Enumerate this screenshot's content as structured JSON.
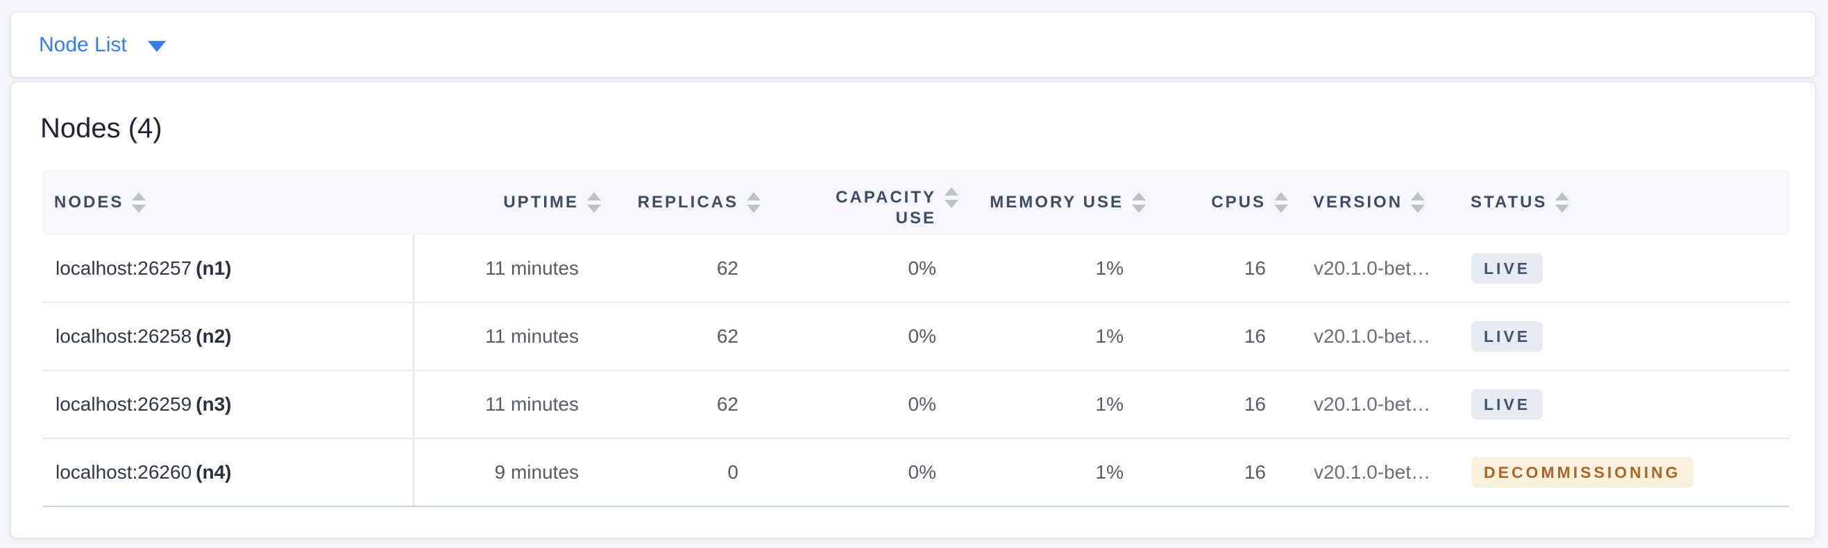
{
  "dropdown": {
    "label": "Node List",
    "caret_icon": "caret-down-icon"
  },
  "summary": {
    "title": "Nodes (4)"
  },
  "colors": {
    "link_blue": "#3b7de8",
    "page_background": "#f3f5fa",
    "header_background": "#f6f7fa",
    "header_text": "#3e4c63",
    "live_badge_bg": "#e7ebf3",
    "live_badge_text": "#44536d",
    "decommissioning_badge_bg": "#faf1dd",
    "decommissioning_badge_text": "#a9662c"
  },
  "table": {
    "columns": [
      {
        "id": "node",
        "label": "NODES",
        "align": "left",
        "sort_icon": "sort-arrows-icon"
      },
      {
        "id": "uptime",
        "label": "UPTIME",
        "align": "right",
        "sort_icon": "sort-arrows-icon"
      },
      {
        "id": "replicas",
        "label": "REPLICAS",
        "align": "right",
        "sort_icon": "sort-arrows-icon"
      },
      {
        "id": "capacity_use",
        "label": "CAPACITY USE",
        "align": "right",
        "wrap": true,
        "sort_icon": "sort-arrows-icon"
      },
      {
        "id": "memory_use",
        "label": "MEMORY USE",
        "align": "right",
        "sort_icon": "sort-arrows-icon"
      },
      {
        "id": "cpus",
        "label": "CPUS",
        "align": "right",
        "sort_icon": "sort-arrows-icon"
      },
      {
        "id": "version",
        "label": "VERSION",
        "align": "left",
        "sort_icon": "sort-arrows-icon"
      },
      {
        "id": "status",
        "label": "STATUS",
        "align": "left",
        "sort_icon": "sort-arrows-icon"
      }
    ],
    "rows": [
      {
        "node": "localhost:26257",
        "node_id": "(n1)",
        "uptime": "11 minutes",
        "replicas": "62",
        "capacity_use": "0%",
        "memory_use": "1%",
        "cpus": "16",
        "version": "v20.1.0-bet…",
        "status": "LIVE",
        "status_type": "live"
      },
      {
        "node": "localhost:26258",
        "node_id": "(n2)",
        "uptime": "11 minutes",
        "replicas": "62",
        "capacity_use": "0%",
        "memory_use": "1%",
        "cpus": "16",
        "version": "v20.1.0-bet…",
        "status": "LIVE",
        "status_type": "live"
      },
      {
        "node": "localhost:26259",
        "node_id": "(n3)",
        "uptime": "11 minutes",
        "replicas": "62",
        "capacity_use": "0%",
        "memory_use": "1%",
        "cpus": "16",
        "version": "v20.1.0-bet…",
        "status": "LIVE",
        "status_type": "live"
      },
      {
        "node": "localhost:26260",
        "node_id": "(n4)",
        "uptime": "9 minutes",
        "replicas": "0",
        "capacity_use": "0%",
        "memory_use": "1%",
        "cpus": "16",
        "version": "v20.1.0-bet…",
        "status": "DECOMMISSIONING",
        "status_type": "decommissioning"
      }
    ]
  }
}
